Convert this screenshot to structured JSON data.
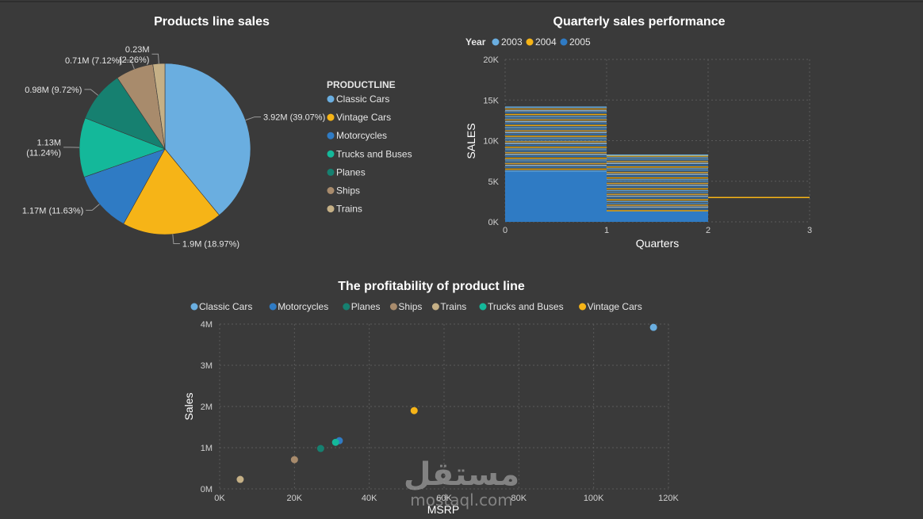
{
  "colors": {
    "classic_cars": "#6aaee0",
    "vintage_cars": "#f6b417",
    "motorcycles": "#2f7bc4",
    "trucks_and_buses": "#14b89a",
    "planes": "#168070",
    "ships": "#a88b6c",
    "trains": "#c5b086",
    "grid": "#5a5a5a",
    "background": "#3a3a3a"
  },
  "chart_data": [
    {
      "type": "pie",
      "title": "Products line sales",
      "legend_title": "PRODUCTLINE",
      "categories": [
        "Classic Cars",
        "Vintage Cars",
        "Motorcycles",
        "Trucks and Buses",
        "Planes",
        "Ships",
        "Trains"
      ],
      "values": [
        39.07,
        18.97,
        11.63,
        11.24,
        9.72,
        7.12,
        2.26
      ],
      "data_labels": [
        "3.92M (39.07%)",
        "1.9M (18.97%)",
        "1.17M (11.63%)",
        "1.13M\n(11.24%)",
        "0.98M (9.72%)",
        "0.71M (7.12%)",
        "0.23M\n(2.26%)"
      ]
    },
    {
      "type": "bar",
      "title": "Quarterly sales performance",
      "legend_title": "Year",
      "series_names": [
        "2003",
        "2004",
        "2005"
      ],
      "xlabel": "Quarters",
      "ylabel": "SALES",
      "x_ticks": [
        "0",
        "1",
        "2",
        "3"
      ],
      "y_ticks": [
        "0K",
        "5K",
        "10K",
        "15K",
        "20K"
      ],
      "xlim": [
        0,
        3
      ],
      "ylim": [
        0,
        20000
      ],
      "bins": [
        {
          "x_start": 0,
          "x_end": 1,
          "solid_value": 6200,
          "max_value": 14100
        },
        {
          "x_start": 1,
          "x_end": 2,
          "solid_value": 1300,
          "max_value": 8200
        },
        {
          "x_start": 2,
          "x_end": 3,
          "solid_value": 3000,
          "max_value": 3000
        }
      ]
    },
    {
      "type": "scatter",
      "title": "The profitability of product line",
      "xlabel": "MSRP",
      "ylabel": "Sales",
      "x_ticks": [
        "0K",
        "20K",
        "40K",
        "60K",
        "80K",
        "100K",
        "120K"
      ],
      "y_ticks": [
        "0M",
        "1M",
        "2M",
        "3M",
        "4M"
      ],
      "xlim": [
        0,
        120000
      ],
      "ylim": [
        0,
        4000000
      ],
      "legend": [
        "Classic Cars",
        "Motorcycles",
        "Planes",
        "Ships",
        "Trains",
        "Trucks and Buses",
        "Vintage Cars"
      ],
      "points": [
        {
          "name": "Classic Cars",
          "x": 116000,
          "y": 3920000
        },
        {
          "name": "Motorcycles",
          "x": 32000,
          "y": 1170000
        },
        {
          "name": "Planes",
          "x": 27000,
          "y": 980000
        },
        {
          "name": "Ships",
          "x": 20000,
          "y": 710000
        },
        {
          "name": "Trains",
          "x": 5500,
          "y": 230000
        },
        {
          "name": "Trucks and Buses",
          "x": 31000,
          "y": 1130000
        },
        {
          "name": "Vintage Cars",
          "x": 52000,
          "y": 1900000
        }
      ]
    }
  ],
  "watermark": {
    "arabic": "مستقل",
    "latin": "mostaql.com"
  }
}
